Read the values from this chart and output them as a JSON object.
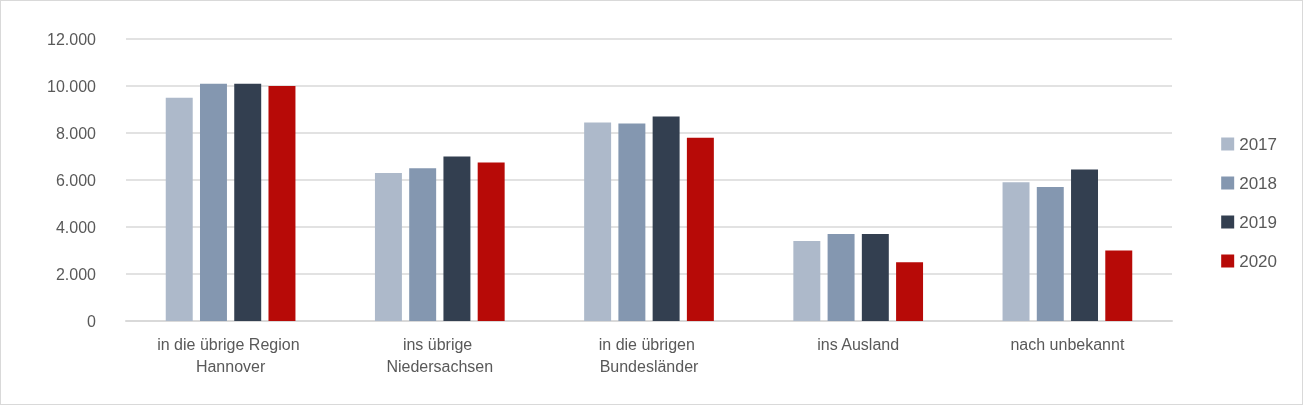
{
  "chart_data": {
    "type": "bar",
    "categories": [
      "in die übrige Region Hannover",
      "ins übrige Niedersachsen",
      "in die übrigen Bundesländer",
      "ins Ausland",
      "nach unbekannt"
    ],
    "series": [
      {
        "name": "2017",
        "color": "#adb9ca",
        "values": [
          9500,
          6300,
          8450,
          3400,
          5900
        ]
      },
      {
        "name": "2018",
        "color": "#8497b0",
        "values": [
          10100,
          6500,
          8400,
          3700,
          5700
        ]
      },
      {
        "name": "2019",
        "color": "#333f50",
        "values": [
          10100,
          7000,
          8700,
          3700,
          6450
        ]
      },
      {
        "name": "2020",
        "color": "#b70a07",
        "values": [
          10000,
          6750,
          7800,
          2500,
          3000
        ]
      }
    ],
    "ylim": [
      0,
      12000
    ],
    "yticks": [
      0,
      {
        "value": 2000,
        "label": "2.000"
      },
      {
        "value": 4000,
        "label": "4.000"
      },
      {
        "value": 6000,
        "label": "6.000"
      },
      {
        "value": 8000,
        "label": "8.000"
      },
      {
        "value": 10000,
        "label": "10.000"
      },
      {
        "value": 12000,
        "label": "12.000"
      }
    ],
    "grid": "y",
    "legend": "right"
  }
}
